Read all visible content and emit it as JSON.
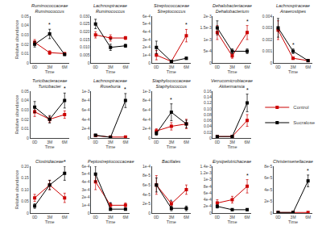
{
  "chart_data": [
    {
      "type": "line",
      "title": "Ruminococcaceae",
      "subtitle": "Ruminococcus",
      "xlabel": "Time",
      "ylabel": "Relative abundance",
      "categories": [
        "0D",
        "3M",
        "6M"
      ],
      "series": [
        {
          "name": "Control",
          "color": "#cc0000",
          "marker": "square",
          "values": [
            0.022,
            0.011,
            0.01
          ],
          "errors": [
            0.003,
            0.002,
            0.001
          ]
        },
        {
          "name": "Sucralose",
          "color": "#000000",
          "marker": "square",
          "values": [
            0.02,
            0.031,
            0.009
          ],
          "errors": [
            0.003,
            0.005,
            0.001
          ]
        }
      ],
      "ylim": [
        0,
        0.05
      ],
      "yticks": [
        0,
        0.01,
        0.02,
        0.03,
        0.04,
        0.05
      ],
      "grid": false,
      "legend": "right",
      "annotations": [
        {
          "text": "*",
          "x": "3M",
          "series": "Sucralose"
        }
      ]
    },
    {
      "type": "line",
      "title": "Lachnospiraceae",
      "subtitle": "Ruminococcus",
      "xlabel": "Time",
      "categories": [
        "0D",
        "3M",
        "6M"
      ],
      "series": [
        {
          "name": "Control",
          "color": "#cc0000",
          "marker": "square",
          "values": [
            0.018,
            0.016,
            0.016
          ],
          "errors": [
            0.002,
            0.002,
            0.001
          ]
        },
        {
          "name": "Sucralose",
          "color": "#000000",
          "marker": "square",
          "values": [
            0.025,
            0.01,
            0.011
          ],
          "errors": [
            0.003,
            0.002,
            0.001
          ]
        }
      ],
      "ylim": [
        0,
        0.03
      ],
      "yticks": [
        0,
        0.005,
        {
          "value": 0.01,
          "label": "0.010"
        },
        0.015,
        {
          "value": 0.02,
          "label": "0.020"
        },
        0.025,
        {
          "value": 0.03,
          "label": "0.030"
        }
      ],
      "grid": false,
      "annotations": [
        {
          "text": "*",
          "x": "3M",
          "series": "Sucralose"
        }
      ]
    },
    {
      "type": "line",
      "title": "Streptococcaceae",
      "subtitle": "Streptococcus",
      "xlabel": "Time",
      "categories": [
        "0D",
        "3M",
        "6M"
      ],
      "series": [
        {
          "name": "Control",
          "color": "#cc0000",
          "marker": "square",
          "values": [
            0.0001,
            2e-05,
            0.00035
          ],
          "errors": [
            6e-05,
            5e-06,
            8e-05
          ]
        },
        {
          "name": "Sucralose",
          "color": "#000000",
          "marker": "square",
          "values": [
            0.0002,
            2e-05,
            6e-05
          ],
          "errors": [
            8e-05,
            5e-06,
            1.5e-05
          ]
        }
      ],
      "ylim": [
        0,
        0.0006
      ],
      "yticks": [
        0,
        {
          "value": 0.0001,
          "label": "1e-4"
        },
        {
          "value": 0.0002,
          "label": "2e-4"
        },
        {
          "value": 0.0003,
          "label": "3e-4"
        },
        {
          "value": 0.0004,
          "label": "4e-4"
        },
        {
          "value": 0.0005,
          "label": "5e-4"
        },
        {
          "value": 0.0006,
          "label": "6e-4"
        }
      ],
      "grid": false,
      "annotations": [
        {
          "text": "*",
          "x": "6M",
          "series": "Control"
        }
      ]
    },
    {
      "type": "line",
      "title": "Dehalobacteriaceae",
      "subtitle": "Dehalobacterium",
      "xlabel": "Time",
      "categories": [
        "0D",
        "3M",
        "6M"
      ],
      "series": [
        {
          "name": "Control",
          "color": "#cc0000",
          "marker": "square",
          "values": [
            0.0013,
            0.0003,
            0.0013
          ],
          "errors": [
            0.0003,
            0.0001,
            0.0003
          ]
        },
        {
          "name": "Sucralose",
          "color": "#000000",
          "marker": "square",
          "values": [
            0.0015,
            0.0005,
            0.0005
          ],
          "errors": [
            0.0003,
            0.0001,
            0.0001
          ]
        }
      ],
      "ylim": [
        0,
        0.002
      ],
      "yticks": [
        0,
        {
          "value": 0.0005,
          "label": "5e-4"
        },
        {
          "value": 0.001,
          "label": "1e-3"
        },
        {
          "value": 0.0015,
          "label": "1.5e-3"
        },
        {
          "value": 0.002,
          "label": "2e-3"
        }
      ],
      "grid": false,
      "annotations": [
        {
          "text": "*",
          "x": "6M",
          "series": "Control"
        }
      ]
    },
    {
      "type": "line",
      "title": "Lachnospiraceae",
      "subtitle": "Anaerostipes",
      "xlabel": "Time",
      "categories": [
        "0D",
        "3M",
        "6M"
      ],
      "series": [
        {
          "name": "Control",
          "color": "#cc0000",
          "marker": "square",
          "values": [
            0.0028,
            0.0004,
            0.0002
          ],
          "errors": [
            0.0008,
            0.0001,
            5e-05
          ]
        },
        {
          "name": "Sucralose",
          "color": "#000000",
          "marker": "square",
          "values": [
            0.003,
            0.001,
            0.0002
          ],
          "errors": [
            0.0008,
            0.0002,
            5e-05
          ]
        }
      ],
      "ylim": [
        0,
        0.004
      ],
      "yticks": [
        0,
        0.001,
        0.002,
        0.003,
        0.004
      ],
      "grid": false,
      "annotations": [
        {
          "text": "*",
          "x": "3M",
          "series": "Sucralose"
        }
      ]
    },
    {
      "type": "line",
      "title": "Turicibacteraceae",
      "subtitle": "Turicibacter",
      "xlabel": "Time",
      "ylabel": "Relative abundance",
      "categories": [
        "0D",
        "3M",
        "6M"
      ],
      "series": [
        {
          "name": "Control",
          "color": "#cc0000",
          "marker": "square",
          "values": [
            0.028,
            0.02,
            0.025
          ],
          "errors": [
            0.005,
            0.003,
            0.004
          ]
        },
        {
          "name": "Sucralose",
          "color": "#000000",
          "marker": "square",
          "values": [
            0.033,
            0.02,
            0.04
          ],
          "errors": [
            0.006,
            0.004,
            0.008
          ]
        }
      ],
      "ylim": [
        0,
        0.05
      ],
      "yticks": [
        0,
        0.01,
        0.02,
        0.03,
        0.04,
        0.05
      ],
      "grid": false,
      "annotations": [
        {
          "text": "*",
          "x": "6M",
          "series": "Sucralose"
        }
      ]
    },
    {
      "type": "line",
      "title": "Lachnospiraceae",
      "subtitle": "Roseburia",
      "xlabel": "Time",
      "categories": [
        "0D",
        "3M",
        "6M"
      ],
      "series": [
        {
          "name": "Control",
          "color": "#cc0000",
          "marker": "square",
          "values": [
            5e-05,
            2e-05,
            2e-05
          ],
          "errors": [
            1.5e-05,
            5e-06,
            5e-06
          ]
        },
        {
          "name": "Sucralose",
          "color": "#000000",
          "marker": "square",
          "values": [
            6e-05,
            1.5e-05,
            0.0008
          ],
          "errors": [
            2e-05,
            5e-06,
            0.00015
          ]
        }
      ],
      "ylim": [
        0,
        0.001
      ],
      "yticks": [
        0,
        {
          "value": 0.0002,
          "label": "2e-4"
        },
        {
          "value": 0.0004,
          "label": "4e-4"
        },
        {
          "value": 0.0006,
          "label": "6e-4"
        },
        {
          "value": 0.0008,
          "label": "8e-4"
        },
        {
          "value": 0.001,
          "label": "1e-3"
        }
      ],
      "grid": false,
      "annotations": [
        {
          "text": "*",
          "x": "6M",
          "series": "Sucralose"
        }
      ]
    },
    {
      "type": "line",
      "title": "Staphylococcaceae",
      "subtitle": "Staphylococcus",
      "xlabel": "Time",
      "categories": [
        "0D",
        "3M",
        "6M"
      ],
      "series": [
        {
          "name": "Control",
          "color": "#cc0000",
          "marker": "square",
          "values": [
            0.00015,
            0.00025,
            0.0003
          ],
          "errors": [
            5e-05,
            8e-05,
            0.0001
          ]
        },
        {
          "name": "Sucralose",
          "color": "#000000",
          "marker": "square",
          "values": [
            0.0001,
            0.00055,
            0.0003
          ],
          "errors": [
            4e-05,
            0.00018,
            8e-05
          ]
        }
      ],
      "ylim": [
        0,
        0.001
      ],
      "yticks": [
        0,
        {
          "value": 0.0002,
          "label": "2e-4"
        },
        {
          "value": 0.0004,
          "label": "4e-4"
        },
        {
          "value": 0.0006,
          "label": "6e-4"
        },
        {
          "value": 0.0008,
          "label": "8e-4"
        },
        {
          "value": 0.001,
          "label": "1e-3"
        }
      ],
      "grid": false,
      "annotations": [
        {
          "text": "*",
          "x": "3M",
          "series": "Sucralose"
        }
      ]
    },
    {
      "type": "line",
      "title": "Verrucomicrobiaceae",
      "subtitle": "Akkermansia",
      "xlabel": "Time",
      "categories": [
        "0D",
        "3M",
        "6M"
      ],
      "series": [
        {
          "name": "Control",
          "color": "#cc0000",
          "marker": "square",
          "values": [
            0.005,
            0.005,
            0.06
          ],
          "errors": [
            0.002,
            0.002,
            0.02
          ]
        },
        {
          "name": "Sucralose",
          "color": "#000000",
          "marker": "square",
          "values": [
            0.005,
            0.005,
            0.12
          ],
          "errors": [
            0.002,
            0.002,
            0.03
          ]
        }
      ],
      "ylim": [
        0,
        0.16
      ],
      "yticks": [
        0,
        0.02,
        0.04,
        0.06,
        0.08,
        {
          "value": 0.1,
          "label": "0.10"
        },
        0.12,
        0.14,
        0.16
      ],
      "grid": false,
      "annotations": [
        {
          "text": "*",
          "x": "6M",
          "series": "Sucralose"
        }
      ]
    },
    {
      "type": "line",
      "title": "Clostridiaceae",
      "xlabel": "Time",
      "ylabel": "Relative abundance",
      "categories": [
        "0D",
        "3M",
        "6M"
      ],
      "series": [
        {
          "name": "Control",
          "color": "#cc0000",
          "marker": "square",
          "values": [
            0.065,
            0.12,
            0.065
          ],
          "errors": [
            0.015,
            0.02,
            0.02
          ]
        },
        {
          "name": "Sucralose",
          "color": "#000000",
          "marker": "square",
          "values": [
            0.03,
            0.12,
            0.17
          ],
          "errors": [
            0.01,
            0.02,
            0.03
          ]
        }
      ],
      "ylim": [
        0,
        0.2
      ],
      "yticks": [
        0,
        0.05,
        {
          "value": 0.1,
          "label": "0.10"
        },
        0.15,
        {
          "value": 0.2,
          "label": "0.20"
        }
      ],
      "grid": false,
      "annotations": [
        {
          "text": "*",
          "x": "6M",
          "series": "Sucralose"
        }
      ]
    },
    {
      "type": "line",
      "title": "Peptostreptococcaceae",
      "xlabel": "Time",
      "categories": [
        "0D",
        "3M",
        "6M"
      ],
      "series": [
        {
          "name": "Control",
          "color": "#cc0000",
          "marker": "square",
          "values": [
            0.0004,
            0.0001,
            0.0001
          ],
          "errors": [
            0.0001,
            3e-05,
            3e-05
          ]
        },
        {
          "name": "Sucralose",
          "color": "#000000",
          "marker": "square",
          "values": [
            0.0005,
            5e-05,
            5e-05
          ],
          "errors": [
            0.0001,
            1.5e-05,
            1e-05
          ]
        }
      ],
      "ylim": [
        0,
        0.0006
      ],
      "yticks": [
        0,
        {
          "value": 0.0001,
          "label": "1e-4"
        },
        {
          "value": 0.0002,
          "label": "2e-4"
        },
        {
          "value": 0.0003,
          "label": "3e-4"
        },
        {
          "value": 0.0004,
          "label": "4e-4"
        },
        {
          "value": 0.0005,
          "label": "5e-4"
        },
        {
          "value": 0.0006,
          "label": "6e-4"
        }
      ],
      "grid": false,
      "annotations": [
        {
          "text": "*",
          "x": "3M",
          "series": "Sucralose"
        }
      ]
    },
    {
      "type": "line",
      "title": "Bacillales",
      "xlabel": "Time",
      "categories": [
        "0D",
        "3M",
        "6M"
      ],
      "series": [
        {
          "name": "Control",
          "color": "#cc0000",
          "marker": "square",
          "values": [
            6e-05,
            2e-05,
            5e-05
          ],
          "errors": [
            2e-05,
            5e-06,
            1e-05
          ]
        },
        {
          "name": "Sucralose",
          "color": "#000000",
          "marker": "square",
          "values": [
            6e-05,
            1e-05,
            1e-05
          ],
          "errors": [
            1.5e-05,
            5e-06,
            5e-06
          ]
        }
      ],
      "ylim": [
        0,
        0.0001
      ],
      "yticks": [
        0,
        {
          "value": 2e-05,
          "label": "2e-5"
        },
        {
          "value": 4e-05,
          "label": "4e-5"
        },
        {
          "value": 6e-05,
          "label": "6e-5"
        },
        {
          "value": 8e-05,
          "label": "8e-5"
        },
        {
          "value": 0.0001,
          "label": "1e-4"
        }
      ],
      "grid": false,
      "annotations": [
        {
          "text": "*",
          "x": "3M",
          "series": "Sucralose"
        }
      ]
    },
    {
      "type": "line",
      "title": "Erysipelotrichaceae",
      "xlabel": "Time",
      "categories": [
        "0D",
        "3M",
        "6M"
      ],
      "series": [
        {
          "name": "Control",
          "color": "#cc0000",
          "marker": "square",
          "values": [
            0.0003,
            0.0004,
            0.0008
          ],
          "errors": [
            0.0001,
            0.0001,
            0.0002
          ]
        },
        {
          "name": "Sucralose",
          "color": "#000000",
          "marker": "square",
          "values": [
            0.0002,
            0.0001,
            0.0001
          ],
          "errors": [
            5e-05,
            3e-05,
            3e-05
          ]
        }
      ],
      "ylim": [
        0,
        0.0014
      ],
      "yticks": [
        0,
        {
          "value": 0.0002,
          "label": "2e-4"
        },
        {
          "value": 0.0004,
          "label": "4e-4"
        },
        {
          "value": 0.0006,
          "label": "6e-4"
        },
        {
          "value": 0.0008,
          "label": "8e-4"
        },
        {
          "value": 0.001,
          "label": "1e-3"
        },
        {
          "value": 0.0012,
          "label": "1.2e-3"
        },
        {
          "value": 0.0014,
          "label": "1.4e-3"
        }
      ],
      "grid": false,
      "annotations": [
        {
          "text": "*",
          "x": "6M",
          "series": "Control"
        }
      ]
    },
    {
      "type": "line",
      "title": "Christensenellaceae",
      "xlabel": "Time",
      "categories": [
        "0D",
        "3M",
        "6M"
      ],
      "series": [
        {
          "name": "Control",
          "color": "#cc0000",
          "marker": "square",
          "values": [
            1e-06,
            1e-06,
            1e-06
          ],
          "errors": [
            1e-06,
            1e-06,
            1e-06
          ]
        },
        {
          "name": "Sucralose",
          "color": "#000000",
          "marker": "square",
          "values": [
            1e-06,
            1e-06,
            5.5e-05
          ],
          "errors": [
            1e-06,
            1e-06,
            1e-05
          ]
        }
      ],
      "ylim": [
        0,
        8e-05
      ],
      "yticks": [
        0,
        {
          "value": 2e-05,
          "label": "2e-5"
        },
        {
          "value": 4e-05,
          "label": "4e-5"
        },
        {
          "value": 6e-05,
          "label": "6e-5"
        },
        {
          "value": 8e-05,
          "label": "8e-5"
        }
      ],
      "grid": false,
      "annotations": [
        {
          "text": "*",
          "x": "6M",
          "series": "Sucralose"
        }
      ]
    }
  ]
}
